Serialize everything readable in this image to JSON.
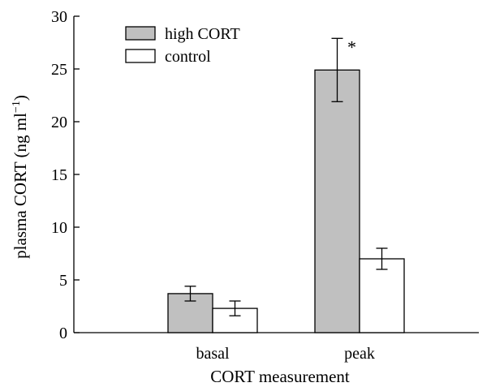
{
  "chart_data": {
    "type": "bar",
    "xlabel": "CORT measurement",
    "ylabel": "plasma CORT (ng ml",
    "ylabel_sup": "−1",
    "ylabel_close": ")",
    "ylim": [
      0,
      30
    ],
    "yticks": [
      0,
      5,
      10,
      15,
      20,
      25,
      30
    ],
    "categories": [
      "basal",
      "peak"
    ],
    "series": [
      {
        "name": "high CORT",
        "color": "#c0c0c0",
        "values": [
          3.7,
          24.9
        ],
        "error": [
          0.7,
          3.0
        ]
      },
      {
        "name": "control",
        "color": "#ffffff",
        "values": [
          2.3,
          7.0
        ],
        "error": [
          0.7,
          1.0
        ]
      }
    ],
    "annotations": [
      {
        "text": "*",
        "category": "peak",
        "series": "high CORT"
      }
    ],
    "legend": "top-left",
    "grid": false
  }
}
